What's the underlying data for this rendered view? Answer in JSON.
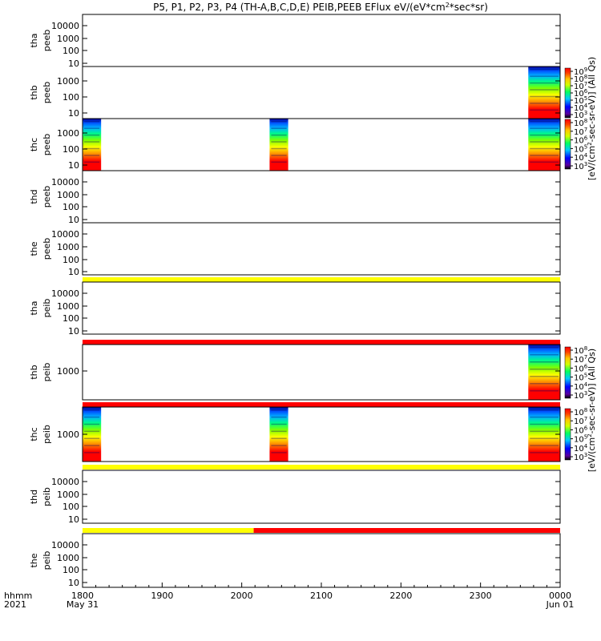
{
  "colors": {
    "yellow": "#ffff00",
    "red": "#ff0000",
    "black": "#000000",
    "white": "#ffffff"
  },
  "chart_data": {
    "type": "heatmap",
    "title": "P5, P1, P2, P3, P4 (TH-A,B,C,D,E) PEIB,PEEB EFlux eV/(eV*cm^2*sec*sr)",
    "title_parts": {
      "main": "P5, P1, P2, P3, P4 (TH-A,B,C,D,E) PEIB,PEEB EFlux eV/(eV*cm",
      "sup": "2",
      "after_sup": "*sec*sr)"
    },
    "x_axis": {
      "row1_label": "hhmm",
      "row2_label": "2021",
      "ticks": [
        {
          "time": 0,
          "label": "1800",
          "sub": "May 31"
        },
        {
          "time": 60,
          "label": "1900",
          "sub": ""
        },
        {
          "time": 120,
          "label": "2000",
          "sub": ""
        },
        {
          "time": 180,
          "label": "2100",
          "sub": ""
        },
        {
          "time": 240,
          "label": "2200",
          "sub": ""
        },
        {
          "time": 300,
          "label": "2300",
          "sub": ""
        },
        {
          "time": 360,
          "label": "0000",
          "sub": "Jun 01"
        }
      ],
      "range_minutes": [
        0,
        360
      ]
    },
    "colorbars": [
      {
        "name": "electron-colorbar",
        "label": "[eV/(cm^2-sec-sr-eV)] (All Qs)",
        "label_parts": [
          "[eV/(cm",
          "2",
          "-sec-sr-eV)] (All Qs)"
        ],
        "exponents_top": [
          "9",
          "8",
          "7",
          "6",
          "5",
          "4",
          "3"
        ],
        "exponents_bottom": [
          "8",
          "7",
          "6",
          "5",
          "4",
          "3"
        ]
      },
      {
        "name": "ion-colorbar",
        "label": "[eV/(cm^2-sec-sr-eV)] (All Qs)",
        "label_parts": [
          "[eV/(cm",
          "2",
          "-sec-sr-eV)] (All Qs)"
        ],
        "exponents_top": [
          "8",
          "7",
          "6",
          "5",
          "4",
          "3"
        ],
        "exponents_bottom": [
          "8",
          "7",
          "6",
          "5",
          "4",
          "3"
        ]
      }
    ],
    "panels": [
      {
        "name": "tha-peeb",
        "label1": "tha",
        "label2": "peeb",
        "yticks": [
          "10000",
          "1000",
          "100",
          "10"
        ],
        "blocks": [],
        "bar": []
      },
      {
        "name": "thb-peeb",
        "label1": "thb",
        "label2": "peeb",
        "yticks": [
          "1000",
          "100",
          "10"
        ],
        "blocks": [
          {
            "t0": 336,
            "t1": 360
          }
        ],
        "bar": []
      },
      {
        "name": "thc-peeb",
        "label1": "thc",
        "label2": "peeb",
        "yticks": [
          "1000",
          "100",
          "10"
        ],
        "blocks": [
          {
            "t0": 0,
            "t1": 14
          },
          {
            "t0": 141,
            "t1": 155
          },
          {
            "t0": 336,
            "t1": 360
          }
        ],
        "bar": []
      },
      {
        "name": "thd-peeb",
        "label1": "thd",
        "label2": "peeb",
        "yticks": [
          "10000",
          "1000",
          "100",
          "10"
        ],
        "blocks": [],
        "bar": []
      },
      {
        "name": "the-peeb",
        "label1": "the",
        "label2": "peeb",
        "yticks": [
          "10000",
          "1000",
          "100",
          "10"
        ],
        "blocks": [],
        "bar": [
          {
            "t0": 0,
            "t1": 360,
            "color": "yellow"
          }
        ]
      },
      {
        "name": "tha-peib",
        "label1": "tha",
        "label2": "peib",
        "yticks": [
          "10000",
          "1000",
          "100",
          "10"
        ],
        "blocks": [],
        "bar": [
          {
            "t0": 0,
            "t1": 360,
            "color": "red"
          }
        ]
      },
      {
        "name": "thb-peib",
        "label1": "thb",
        "label2": "peib",
        "yticks": [
          "1000"
        ],
        "blocks": [
          {
            "t0": 336,
            "t1": 360
          }
        ],
        "bar": [
          {
            "t0": 0,
            "t1": 360,
            "color": "red"
          }
        ]
      },
      {
        "name": "thc-peib",
        "label1": "thc",
        "label2": "peib",
        "yticks": [
          "1000"
        ],
        "blocks": [
          {
            "t0": 0,
            "t1": 14
          },
          {
            "t0": 141,
            "t1": 155
          },
          {
            "t0": 336,
            "t1": 360
          }
        ],
        "bar": [
          {
            "t0": 0,
            "t1": 360,
            "color": "yellow"
          }
        ]
      },
      {
        "name": "thd-peib",
        "label1": "thd",
        "label2": "peib",
        "yticks": [
          "10000",
          "1000",
          "100",
          "10"
        ],
        "blocks": [],
        "bar": [
          {
            "t0": 0,
            "t1": 129,
            "color": "yellow"
          },
          {
            "t0": 129,
            "t1": 360,
            "color": "red"
          }
        ]
      },
      {
        "name": "the-peib",
        "label1": "the",
        "label2": "peib",
        "yticks": [
          "10000",
          "1000",
          "100",
          "10"
        ],
        "blocks": [],
        "bar": []
      }
    ]
  }
}
